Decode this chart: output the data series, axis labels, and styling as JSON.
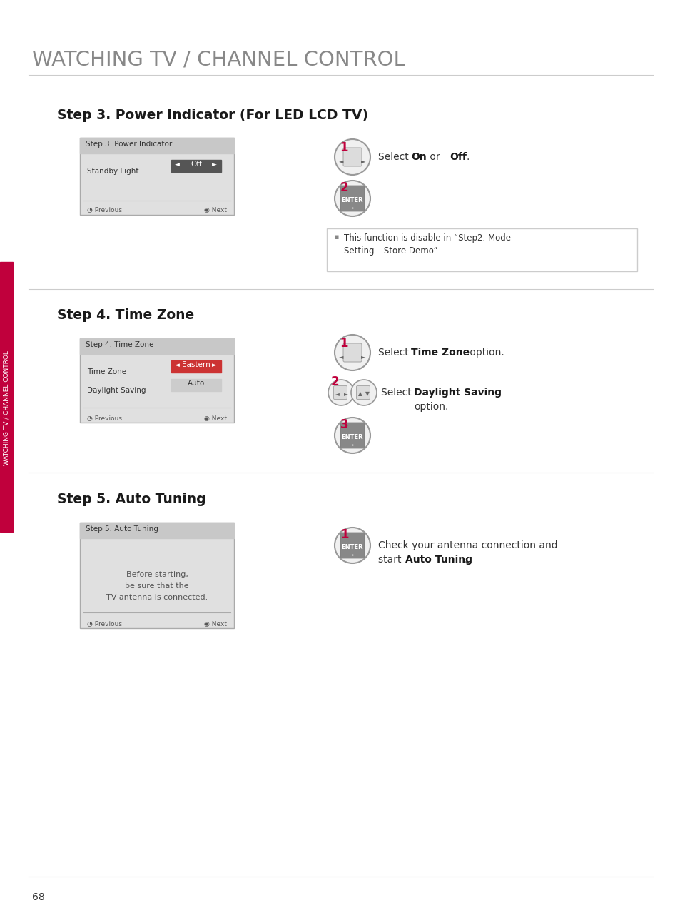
{
  "page_bg": "#ffffff",
  "title": "WATCHING TV / CHANNEL CONTROL",
  "title_color": "#888888",
  "sidebar_color": "#c0003c",
  "sidebar_text": "WATCHING TV / CHANNEL CONTROL",
  "step3_heading": "Step 3. Power Indicator (For LED LCD TV)",
  "step4_heading": "Step 4. Time Zone",
  "step5_heading": "Step 5. Auto Tuning",
  "note_line1": "This function is disable in “Step2. Mode",
  "note_line2": "Setting – Store Demo”.",
  "page_number": "68",
  "arrow_left": "◄",
  "arrow_right": "►",
  "arrow_up": "▲",
  "arrow_down": "▼",
  "bullet_sq": "▪",
  "circle_dot": "◔",
  "circle_bull": "◉",
  "bullet": "•"
}
